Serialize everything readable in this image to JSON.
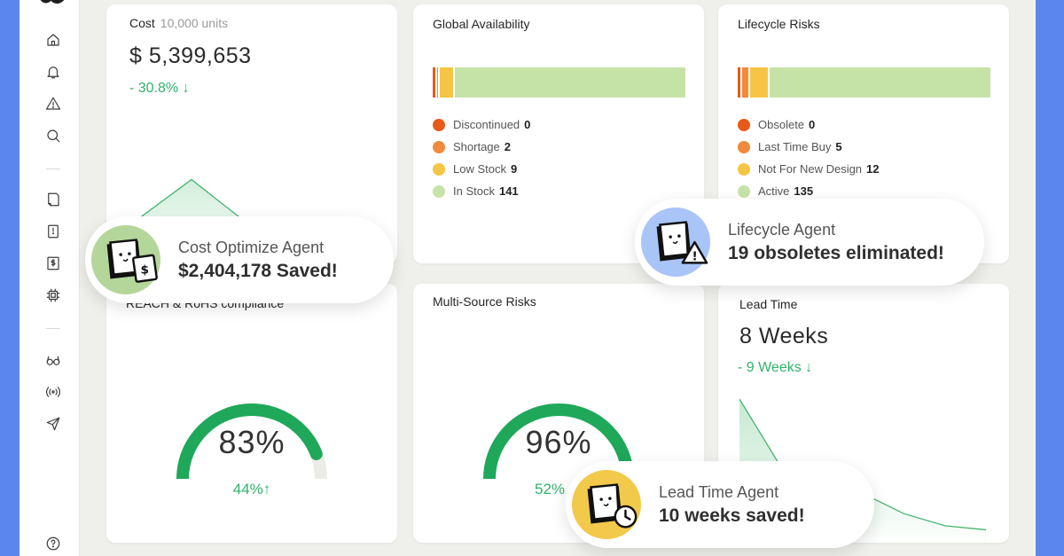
{
  "colors": {
    "accent_green": "#2fb36a",
    "discontinued": "#e85a19",
    "shortage": "#f08a3c",
    "low_stock": "#f6c545",
    "in_stock": "#c6e3a7"
  },
  "sidebar": {
    "items": [
      {
        "icon": "home-icon"
      },
      {
        "icon": "bell-icon"
      },
      {
        "icon": "warning-icon"
      },
      {
        "icon": "search-icon"
      },
      {
        "icon": "document-icon"
      },
      {
        "icon": "alert-book-icon"
      },
      {
        "icon": "dollar-icon"
      },
      {
        "icon": "chip-icon"
      },
      {
        "icon": "glasses-icon"
      },
      {
        "icon": "broadcast-icon"
      },
      {
        "icon": "send-icon"
      },
      {
        "icon": "help-icon"
      }
    ]
  },
  "cards": {
    "cost": {
      "title": "Cost",
      "units": "10,000 units",
      "value": "$ 5,399,653",
      "delta": "- 30.8% ↓",
      "trend": [
        0.28,
        0.75,
        0.25,
        0.0
      ]
    },
    "global": {
      "title": "Global Availability",
      "items": [
        {
          "label": "Discontinued",
          "count": "0",
          "color": "#e85a19",
          "value": 0
        },
        {
          "label": "Shortage",
          "count": "2",
          "color": "#f08a3c",
          "value": 2
        },
        {
          "label": "Low Stock",
          "count": "9",
          "color": "#f6c545",
          "value": 9
        },
        {
          "label": "In Stock",
          "count": "141",
          "color": "#c6e3a7",
          "value": 141
        }
      ]
    },
    "lifecycle": {
      "title": "Lifecycle Risks",
      "items": [
        {
          "label": "Obsolete",
          "count": "0",
          "color": "#e85a19",
          "value": 0
        },
        {
          "label": "Last Time Buy",
          "count": "5",
          "color": "#f08a3c",
          "value": 5
        },
        {
          "label": "Not For New Design",
          "count": "12",
          "color": "#f6c545",
          "value": 12
        },
        {
          "label": "Active",
          "count": "135",
          "color": "#c6e3a7",
          "value": 135
        }
      ]
    },
    "compliance": {
      "title": "REACH & RoHS compliance",
      "value": "83%",
      "sub": "44%↑",
      "percent": 83
    },
    "multisource": {
      "title": "Multi-Source Risks",
      "value": "96%",
      "sub": "52%",
      "percent": 96
    },
    "leadtime": {
      "title": "Lead Time",
      "value": "8 Weeks",
      "delta": "- 9 Weeks ↓",
      "trend": [
        1.0,
        0.5,
        0.42,
        0.3,
        0.15,
        0.06,
        0.03
      ]
    }
  },
  "agents": {
    "cost": {
      "name": "Cost Optimize Agent",
      "result": "$2,404,178 Saved!",
      "color": "#b5d69a",
      "badge": "$"
    },
    "lifecycle": {
      "name": "Lifecycle Agent",
      "result": "19 obsoletes eliminated!",
      "color": "#a9c4f7",
      "badge": "!"
    },
    "leadtime": {
      "name": "Lead Time Agent",
      "result": "10 weeks saved!",
      "color": "#f2c94a",
      "badge": "clock"
    }
  }
}
